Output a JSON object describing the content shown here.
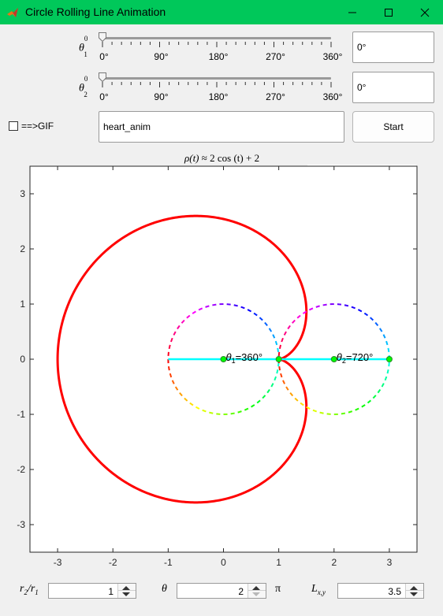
{
  "window": {
    "title": "Circle Rolling Line Animation"
  },
  "sliders": [
    {
      "symbol": "θ",
      "sup": "0",
      "sub": "1",
      "value_text": "0°",
      "value_fraction": 0.0,
      "tick_labels": [
        "0°",
        "90°",
        "180°",
        "270°",
        "360°"
      ]
    },
    {
      "symbol": "θ",
      "sup": "0",
      "sub": "2",
      "value_text": "0°",
      "value_fraction": 0.0,
      "tick_labels": [
        "0°",
        "90°",
        "180°",
        "270°",
        "360°"
      ]
    }
  ],
  "gif": {
    "label": "==>GIF",
    "checked": false,
    "filename": "heart_anim"
  },
  "start_button": {
    "label": "Start"
  },
  "plot": {
    "title_lhs": "ρ(t)",
    "title_rest": " ≈ 2 cos (t) + 2",
    "toolbar_icons": [
      "brush-icon",
      "data-tip-icon",
      "legend-icon",
      "pan-icon",
      "zoom-in-icon",
      "zoom-out-icon",
      "home-icon"
    ]
  },
  "chart_data": {
    "type": "line",
    "xlim": [
      -3.5,
      3.5
    ],
    "ylim": [
      -3.5,
      3.5
    ],
    "x_ticks": [
      -3,
      -2,
      -1,
      0,
      1,
      2,
      3
    ],
    "y_ticks": [
      -3,
      -2,
      -1,
      0,
      1,
      2,
      3
    ],
    "x_tick_labels": [
      "-3",
      "-2",
      "-1",
      "0",
      "1",
      "2",
      "3"
    ],
    "y_tick_labels": [
      "-3",
      "-2",
      "-1",
      "0",
      "1",
      "2",
      "3"
    ],
    "grid": false,
    "curve": {
      "kind": "cardioid",
      "a": 1,
      "color": "#ff0000"
    },
    "circle1": {
      "center": [
        0,
        0
      ],
      "radius": 1,
      "style": "dashed-hsv"
    },
    "circle2": {
      "center": [
        2,
        0
      ],
      "radius": 1,
      "style": "dashed-hsv"
    },
    "line": {
      "from": [
        -1,
        0
      ],
      "to": [
        3,
        0
      ],
      "color": "#00ffff"
    },
    "points": [
      {
        "x": 0,
        "y": 0,
        "color": "#00ff00"
      },
      {
        "x": 2,
        "y": 0,
        "color": "#00ff00"
      },
      {
        "x": 3,
        "y": 0,
        "color": "#00ff00"
      },
      {
        "x": 1,
        "y": 0,
        "color": "#00ff00"
      }
    ],
    "annotations": [
      {
        "x": 0,
        "y": 0,
        "sym": "θ",
        "sub": "1",
        "text": "=360°"
      },
      {
        "x": 2,
        "y": 0,
        "sym": "θ",
        "sub": "2",
        "text": "=720°"
      }
    ]
  },
  "controls": [
    {
      "label_main": "r",
      "label_sub1": "2",
      "label_mid": "/r",
      "label_sub2": "1",
      "value": "1",
      "down_disabled": false,
      "unit": ""
    },
    {
      "label_main": "θ",
      "value": "2",
      "down_disabled": true,
      "unit": "π"
    },
    {
      "label_main": "L",
      "label_sub1": "x,y",
      "value": "3.5",
      "down_disabled": false,
      "unit": ""
    }
  ]
}
